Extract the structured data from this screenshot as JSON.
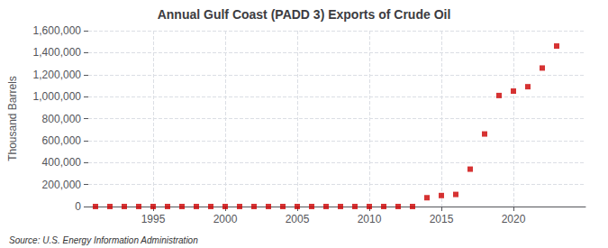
{
  "chart_data": {
    "type": "scatter",
    "title": "Annual Gulf Coast (PADD 3) Exports of Crude Oil",
    "ylabel": "Thousand Barrels",
    "annotations": [
      "Source: U.S. Energy Information Administration"
    ],
    "x": [
      1991,
      1992,
      1993,
      1994,
      1995,
      1996,
      1997,
      1998,
      1999,
      2000,
      2001,
      2002,
      2003,
      2004,
      2005,
      2006,
      2007,
      2008,
      2009,
      2010,
      2011,
      2012,
      2013,
      2014,
      2015,
      2016,
      2017,
      2018,
      2019,
      2020,
      2021,
      2022,
      2023
    ],
    "values": [
      2,
      1,
      1,
      1,
      1,
      1,
      3,
      2,
      1,
      3,
      2,
      2,
      4,
      3,
      4,
      3,
      2,
      2,
      3,
      5,
      5,
      8,
      10,
      80000,
      100000,
      110000,
      340000,
      660000,
      1010000,
      1050000,
      1090000,
      1260000,
      1460000
    ],
    "color": "#cc0000",
    "marker": "square",
    "xlim": [
      1990.5,
      2025
    ],
    "xticks": [
      1995,
      2000,
      2005,
      2010,
      2015,
      2020
    ],
    "ylim": [
      0,
      1600000
    ],
    "yticks": [
      0,
      {
        "value": 200000,
        "label": "200,000"
      },
      {
        "value": 400000,
        "label": "400,000"
      },
      {
        "value": 600000,
        "label": "600,000"
      },
      {
        "value": 800000,
        "label": "800,000"
      },
      {
        "value": 1000000,
        "label": "1,000,000"
      },
      {
        "value": 1200000,
        "label": "1,200,000"
      },
      {
        "value": 1400000,
        "label": "1,400,000"
      },
      {
        "value": 1600000,
        "label": "1,600,000"
      }
    ],
    "grid": true
  }
}
